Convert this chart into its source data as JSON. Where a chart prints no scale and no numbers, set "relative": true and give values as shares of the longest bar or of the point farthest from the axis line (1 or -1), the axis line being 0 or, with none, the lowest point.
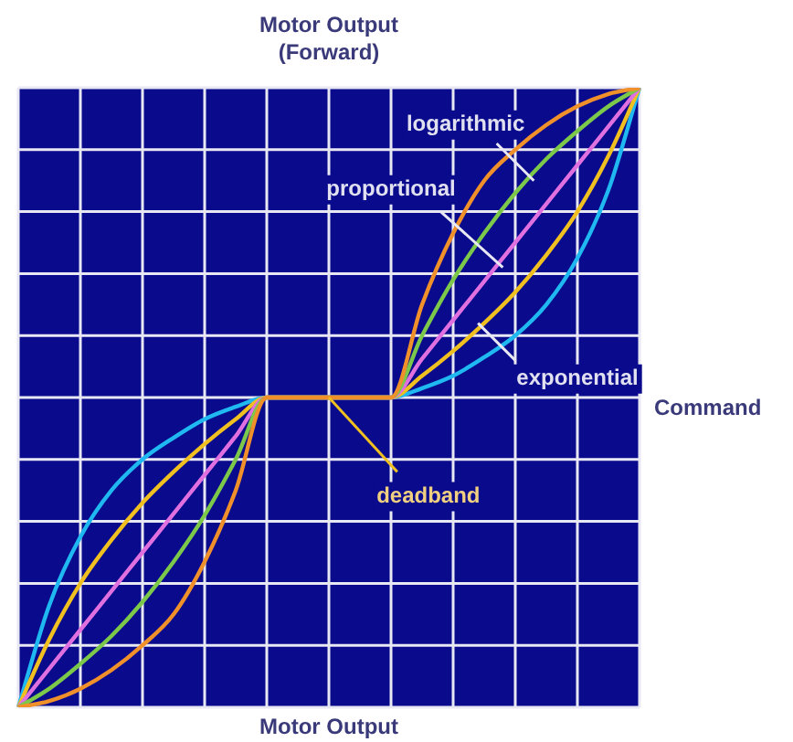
{
  "chart_data": {
    "type": "line",
    "relative": true,
    "ylabel": "Motor Output (Forward)",
    "xlabel": "Command",
    "grid": true,
    "marker": "none",
    "line_style": "solid",
    "legend": false,
    "categories": [
      null,
      null,
      null,
      null,
      null,
      null,
      null,
      null,
      null,
      null,
      null,
      null,
      null,
      null,
      null,
      null,
      null,
      null,
      null,
      null,
      null
    ],
    "series": [
      {
        "color": "#f0902a",
        "values": [
          -1,
          -0.98,
          -0.94,
          -0.88,
          -0.8,
          -0.7,
          -0.53,
          -0.3,
          0,
          0,
          0,
          0,
          0,
          0.3,
          0.53,
          0.7,
          0.8,
          0.88,
          0.94,
          0.98,
          1
        ]
      },
      {
        "color": "#7cc84a",
        "values": [
          -1,
          -0.94,
          -0.86,
          -0.77,
          -0.66,
          -0.53,
          -0.38,
          -0.2,
          0,
          0,
          0,
          0,
          0,
          0.2,
          0.38,
          0.53,
          0.66,
          0.77,
          0.86,
          0.94,
          1
        ]
      },
      {
        "color": "#e070e0",
        "values": [
          -1,
          -0.875,
          -0.75,
          -0.625,
          -0.5,
          -0.375,
          -0.25,
          -0.125,
          0,
          0,
          0,
          0,
          0,
          0.125,
          0.25,
          0.375,
          0.5,
          0.625,
          0.75,
          0.875,
          1
        ]
      },
      {
        "color": "#f0c020",
        "values": [
          -1,
          -0.78,
          -0.6,
          -0.46,
          -0.34,
          -0.24,
          -0.15,
          -0.07,
          0,
          0,
          0,
          0,
          0,
          0.07,
          0.15,
          0.24,
          0.34,
          0.46,
          0.6,
          0.78,
          1
        ]
      },
      {
        "color": "#20b8f0",
        "values": [
          -1,
          -0.67,
          -0.45,
          -0.3,
          -0.2,
          -0.13,
          -0.07,
          -0.03,
          0,
          0,
          0,
          0,
          0,
          0.03,
          0.07,
          0.13,
          0.2,
          0.3,
          0.45,
          0.67,
          1
        ]
      }
    ],
    "annotations": [
      "logarithmic",
      "proportional",
      "exponential",
      "deadband",
      "Motor Output"
    ]
  }
}
